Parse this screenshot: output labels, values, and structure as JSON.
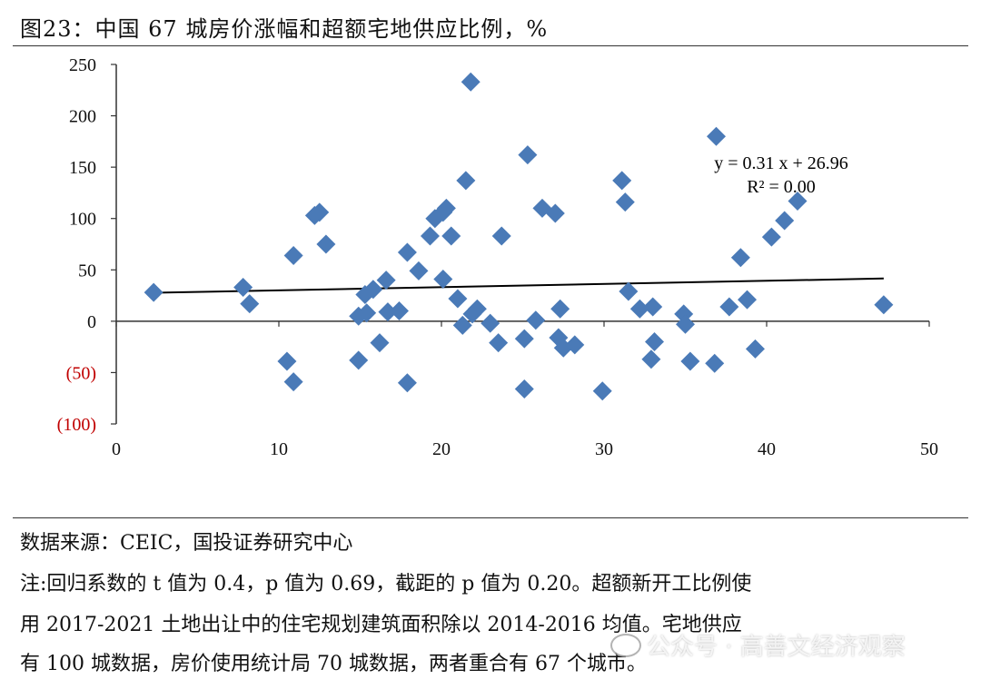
{
  "title": "图23：中国 67 城房价涨幅和超额宅地供应比例，%",
  "chart_data": {
    "type": "scatter",
    "xlim": [
      0,
      50
    ],
    "ylim": [
      -100,
      250
    ],
    "x_ticks": [
      0,
      10,
      20,
      30,
      40,
      50
    ],
    "y_ticks": [
      {
        "value": 250,
        "label": "250"
      },
      {
        "value": 200,
        "label": "200"
      },
      {
        "value": 150,
        "label": "150"
      },
      {
        "value": 100,
        "label": "100"
      },
      {
        "value": 50,
        "label": "50"
      },
      {
        "value": 0,
        "label": "0"
      },
      {
        "value": -50,
        "label": "(50)"
      },
      {
        "value": -100,
        "label": "(100)"
      }
    ],
    "negative_label_color": "#c00000",
    "marker_color": "#4a7ab7",
    "grid": false,
    "points": [
      [
        2.3,
        28
      ],
      [
        7.8,
        33
      ],
      [
        8.2,
        17
      ],
      [
        10.5,
        -39
      ],
      [
        10.9,
        64
      ],
      [
        10.9,
        -59
      ],
      [
        12.2,
        103
      ],
      [
        12.5,
        106
      ],
      [
        12.9,
        75
      ],
      [
        14.9,
        5
      ],
      [
        14.9,
        -38
      ],
      [
        15.3,
        26
      ],
      [
        15.4,
        8
      ],
      [
        15.8,
        31
      ],
      [
        16.2,
        -21
      ],
      [
        16.6,
        40
      ],
      [
        16.7,
        9
      ],
      [
        17.4,
        10
      ],
      [
        17.9,
        67
      ],
      [
        17.9,
        -60
      ],
      [
        18.6,
        49
      ],
      [
        19.3,
        83
      ],
      [
        19.6,
        100
      ],
      [
        20.1,
        106
      ],
      [
        20.1,
        41
      ],
      [
        20.3,
        110
      ],
      [
        20.6,
        83
      ],
      [
        21.0,
        22
      ],
      [
        21.3,
        -4
      ],
      [
        21.5,
        137
      ],
      [
        21.8,
        233
      ],
      [
        21.9,
        7
      ],
      [
        22.2,
        12
      ],
      [
        23.0,
        -2
      ],
      [
        23.5,
        -21
      ],
      [
        23.7,
        83
      ],
      [
        25.1,
        -17
      ],
      [
        25.1,
        -66
      ],
      [
        25.3,
        162
      ],
      [
        25.8,
        1
      ],
      [
        26.2,
        110
      ],
      [
        27.0,
        105
      ],
      [
        27.2,
        -16
      ],
      [
        27.3,
        12
      ],
      [
        27.5,
        -26
      ],
      [
        28.2,
        -23
      ],
      [
        29.9,
        -68
      ],
      [
        31.1,
        137
      ],
      [
        31.3,
        116
      ],
      [
        31.5,
        29
      ],
      [
        32.2,
        12
      ],
      [
        32.9,
        -37
      ],
      [
        33.0,
        14
      ],
      [
        33.1,
        -20
      ],
      [
        34.9,
        7
      ],
      [
        35.0,
        -3
      ],
      [
        35.3,
        -39
      ],
      [
        36.8,
        -41
      ],
      [
        36.9,
        180
      ],
      [
        37.7,
        14
      ],
      [
        38.4,
        62
      ],
      [
        38.8,
        21
      ],
      [
        39.3,
        -27
      ],
      [
        40.3,
        82
      ],
      [
        41.1,
        98
      ],
      [
        41.9,
        117
      ],
      [
        47.2,
        16
      ]
    ],
    "trendline": {
      "slope": 0.31,
      "intercept": 26.96,
      "equation": "y = 0.31 x + 26.96",
      "r2": "R² = 0.00"
    }
  },
  "footer": {
    "source": "数据来源：CEIC，国投证券研究中心",
    "note_line1": "注:回归系数的 t 值为 0.4，p 值为 0.69，截距的 p 值为 0.20。超额新开工比例使",
    "note_line2": "用 2017-2021 土地出让中的住宅规划建筑面积除以 2014-2016 均值。宅地供应",
    "note_line3": "有 100 城数据，房价使用统计局 70 城数据，两者重合有 67 个城市。"
  },
  "watermark": "公众号 · 高善文经济观察",
  "watermark_icon": "wechat-icon"
}
